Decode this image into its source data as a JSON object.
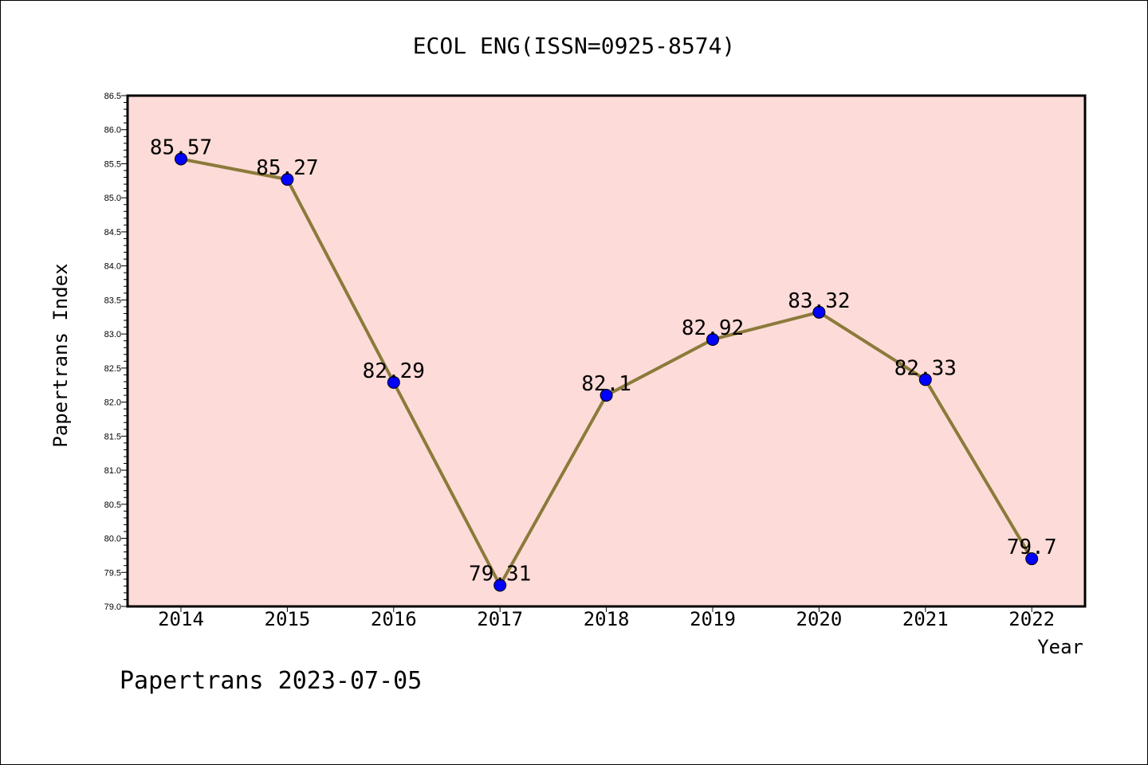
{
  "chart_data": {
    "type": "line",
    "title": "ECOL ENG(ISSN=0925-8574)",
    "xlabel": "Year",
    "ylabel": "Papertrans Index",
    "categories": [
      "2014",
      "2015",
      "2016",
      "2017",
      "2018",
      "2019",
      "2020",
      "2021",
      "2022"
    ],
    "values": [
      85.57,
      85.27,
      82.29,
      79.31,
      82.1,
      82.92,
      83.32,
      82.33,
      79.7
    ],
    "value_labels": [
      "85.57",
      "85.27",
      "82.29",
      "79.31",
      "82.1",
      "82.92",
      "83.32",
      "82.33",
      "79.7"
    ],
    "y_ticks": [
      "79.0",
      "79.5",
      "80.0",
      "80.5",
      "81.0",
      "81.5",
      "82.0",
      "82.5",
      "83.0",
      "83.5",
      "84.0",
      "84.5",
      "85.0",
      "85.5",
      "86.0",
      "86.5"
    ],
    "ylim": [
      79.0,
      86.5
    ],
    "grid": false,
    "colors": {
      "plot_bg": "#fddbd8",
      "line": "#8b7a3a",
      "marker": "#0000ff"
    }
  },
  "footer": {
    "text": "Papertrans 2023-07-05"
  }
}
